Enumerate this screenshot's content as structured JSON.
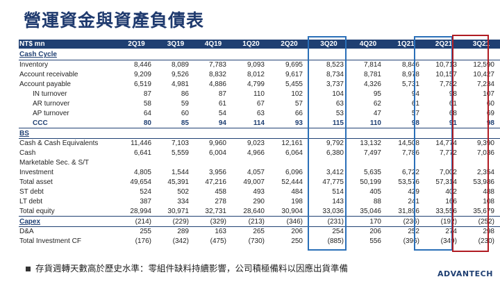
{
  "title": "營運資金與資產負債表",
  "table": {
    "unit_label": "NT$ mn",
    "columns": [
      "2Q19",
      "3Q19",
      "4Q19",
      "1Q20",
      "2Q20",
      "3Q20",
      "4Q20",
      "1Q21",
      "2Q21",
      "3Q21"
    ],
    "rows": [
      {
        "label": "Cash Cycle",
        "type": "section",
        "values": [
          "",
          "",
          "",
          "",
          "",
          "",
          "",
          "",
          "",
          ""
        ]
      },
      {
        "label": "Inventory",
        "type": "item",
        "values": [
          "8,446",
          "8,089",
          "7,783",
          "9,093",
          "9,695",
          "8,523",
          "7,814",
          "8,846",
          "10,713",
          "12,590"
        ]
      },
      {
        "label": "Account receivable",
        "type": "item",
        "values": [
          "9,209",
          "9,526",
          "8,832",
          "8,012",
          "9,617",
          "8,734",
          "8,781",
          "8,978",
          "10,157",
          "10,427"
        ]
      },
      {
        "label": "Account payable",
        "type": "item",
        "values": [
          "6,519",
          "4,981",
          "4,886",
          "4,799",
          "5,455",
          "3,737",
          "4,326",
          "5,731",
          "7,782",
          "7,234"
        ]
      },
      {
        "label": "IN turnover",
        "type": "indent",
        "values": [
          "87",
          "86",
          "87",
          "110",
          "102",
          "104",
          "95",
          "94",
          "98",
          "107"
        ]
      },
      {
        "label": "AR turnover",
        "type": "indent",
        "values": [
          "58",
          "59",
          "61",
          "67",
          "57",
          "63",
          "62",
          "61",
          "61",
          "60"
        ]
      },
      {
        "label": "AP turnover",
        "type": "indent",
        "values": [
          "64",
          "60",
          "54",
          "63",
          "66",
          "53",
          "47",
          "57",
          "68",
          "69"
        ]
      },
      {
        "label": "CCC",
        "type": "ccc",
        "values": [
          "80",
          "85",
          "94",
          "114",
          "93",
          "115",
          "110",
          "98",
          "91",
          "98"
        ]
      },
      {
        "label": "BS",
        "type": "section",
        "values": [
          "",
          "",
          "",
          "",
          "",
          "",
          "",
          "",
          "",
          ""
        ]
      },
      {
        "label": "Cash & Cash Equivalents",
        "type": "item",
        "values": [
          "11,446",
          "7,103",
          "9,960",
          "9,023",
          "12,161",
          "9,792",
          "13,132",
          "14,508",
          "14,774",
          "9,390"
        ]
      },
      {
        "label": "Cash",
        "type": "item",
        "values": [
          "6,641",
          "5,559",
          "6,004",
          "4,966",
          "6,064",
          "6,380",
          "7,497",
          "7,786",
          "7,772",
          "7,036"
        ]
      },
      {
        "label": "Marketable Sec. & S/T",
        "type": "item",
        "values": [
          "",
          "",
          "",
          "",
          "",
          "",
          "",
          "",
          "",
          ""
        ]
      },
      {
        "label": "Investment",
        "type": "item",
        "values": [
          "4,805",
          "1,544",
          "3,956",
          "4,057",
          "6,096",
          "3,412",
          "5,635",
          "6,722",
          "7,002",
          "2,354"
        ]
      },
      {
        "label": "Total asset",
        "type": "item",
        "values": [
          "49,654",
          "45,391",
          "47,216",
          "49,007",
          "52,444",
          "47,775",
          "50,199",
          "53,576",
          "57,314",
          "53,986"
        ]
      },
      {
        "label": "ST debt",
        "type": "item",
        "values": [
          "524",
          "502",
          "458",
          "493",
          "484",
          "514",
          "405",
          "429",
          "402",
          "488"
        ]
      },
      {
        "label": "LT debt",
        "type": "item",
        "values": [
          "387",
          "334",
          "278",
          "290",
          "198",
          "143",
          "88",
          "241",
          "166",
          "108"
        ]
      },
      {
        "label": "Total equity",
        "type": "item",
        "values": [
          "28,994",
          "30,971",
          "32,731",
          "28,640",
          "30,904",
          "33,036",
          "35,046",
          "31,896",
          "33,556",
          "35,679"
        ]
      },
      {
        "label": "Capex",
        "type": "section",
        "values": [
          "(214)",
          "(229)",
          "(329)",
          "(213)",
          "(346)",
          "(231)",
          "170",
          "(236)",
          "(192)",
          "(252)"
        ]
      },
      {
        "label": "D&A",
        "type": "item",
        "values": [
          "255",
          "289",
          "163",
          "265",
          "206",
          "254",
          "206",
          "252",
          "274",
          "298"
        ]
      },
      {
        "label": "Total Investment CF",
        "type": "item",
        "values": [
          "(176)",
          "(342)",
          "(475)",
          "(730)",
          "250",
          "(885)",
          "556",
          "(396)",
          "(349)",
          "(230)"
        ]
      }
    ]
  },
  "note": "存貨週轉天數高於歷史水準：零組件缺料持續影響，公司積極備料以因應出貨準備",
  "logo": "ADVANTECH",
  "colors": {
    "header_bg": "#1f3f72",
    "highlight_blue": "#2a6fb8",
    "highlight_red": "#b01b22"
  }
}
